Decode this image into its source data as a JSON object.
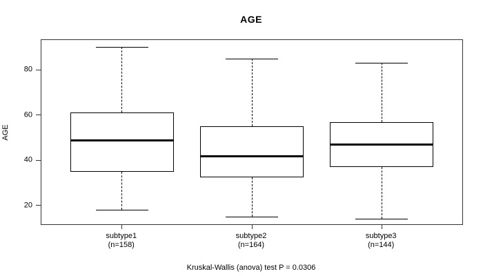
{
  "chart_data": {
    "type": "boxplot",
    "title": "AGE",
    "ylabel": "AGE",
    "xlabel": "",
    "y_ticks": [
      20,
      40,
      60,
      80
    ],
    "ylim": [
      11.7,
      93.2
    ],
    "grid": false,
    "annotation": "Kruskal-Wallis (anova) test P = 0.0306",
    "test_p_value": 0.0306,
    "series": [
      {
        "label": "subtype1",
        "n_label": "(n=158)",
        "n": 158,
        "whisker_low": 18,
        "q1": 35,
        "median": 49,
        "q3": 61,
        "whisker_high": 90
      },
      {
        "label": "subtype2",
        "n_label": "(n=164)",
        "n": 164,
        "whisker_low": 15,
        "q1": 32.5,
        "median": 42,
        "q3": 55,
        "whisker_high": 85
      },
      {
        "label": "subtype3",
        "n_label": "(n=144)",
        "n": 144,
        "whisker_low": 14,
        "q1": 37,
        "median": 47,
        "q3": 57,
        "whisker_high": 83
      }
    ]
  }
}
